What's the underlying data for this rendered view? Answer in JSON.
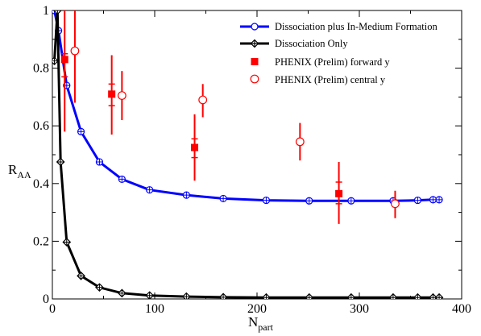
{
  "chart_data": {
    "type": "scatter",
    "xlabel": "N",
    "xlabel_sub": "part",
    "ylabel": "R",
    "ylabel_sub": "AA",
    "xlim": [
      0,
      400
    ],
    "ylim": [
      0,
      1
    ],
    "xticks": [
      0,
      100,
      200,
      300,
      400
    ],
    "xtick_labels": [
      "0",
      "100",
      "200",
      "300",
      "400"
    ],
    "yticks": [
      0,
      0.2,
      0.4,
      0.6,
      0.8,
      1.0
    ],
    "ytick_labels": [
      "0",
      "0.2",
      "0.4",
      "0.6",
      "0.8",
      "1"
    ],
    "legend_position": "top-right",
    "series": [
      {
        "name": "Dissociation plus In-Medium Formation",
        "kind": "line-marker",
        "color": "#0000ff",
        "marker": "circle-plus",
        "x": [
          2,
          6,
          14,
          28,
          46,
          68,
          95,
          131,
          167,
          209,
          251,
          292,
          333,
          357,
          372,
          378
        ],
        "y": [
          1.0,
          0.93,
          0.74,
          0.58,
          0.475,
          0.415,
          0.378,
          0.36,
          0.348,
          0.342,
          0.34,
          0.34,
          0.34,
          0.342,
          0.344,
          0.344
        ]
      },
      {
        "name": "Dissociation Only",
        "kind": "line-marker",
        "color": "#000000",
        "marker": "diamond-plus",
        "x": [
          2,
          5,
          8,
          14,
          28,
          46,
          68,
          95,
          131,
          167,
          209,
          251,
          292,
          333,
          357,
          372,
          378
        ],
        "y": [
          0.825,
          1.0,
          0.475,
          0.197,
          0.08,
          0.04,
          0.02,
          0.012,
          0.008,
          0.006,
          0.005,
          0.005,
          0.005,
          0.005,
          0.005,
          0.005,
          0.005
        ]
      },
      {
        "name": "PHENIX (Prelim) forward y",
        "kind": "marker",
        "color": "#ff0000",
        "marker": "filled-square",
        "points": [
          {
            "x": 12,
            "y": 0.83,
            "err_lo": 0.58,
            "err_hi": 1.0,
            "cap_hi": 0.85,
            "cap_lo": 0.77
          },
          {
            "x": 58,
            "y": 0.71,
            "err_lo": 0.57,
            "err_hi": 0.845,
            "cap_hi": 0.745,
            "cap_lo": 0.67
          },
          {
            "x": 139,
            "y": 0.525,
            "err_lo": 0.41,
            "err_hi": 0.64,
            "cap_hi": 0.555,
            "cap_lo": 0.49
          },
          {
            "x": 280,
            "y": 0.365,
            "err_lo": 0.26,
            "err_hi": 0.475,
            "cap_hi": 0.405,
            "cap_lo": 0.33
          }
        ]
      },
      {
        "name": "PHENIX (Prelim) central y",
        "kind": "marker",
        "color": "#ff0000",
        "marker": "open-circle",
        "points": [
          {
            "x": 22,
            "y": 0.86,
            "err_lo": 0.68,
            "err_hi": 1.0
          },
          {
            "x": 68,
            "y": 0.705,
            "err_lo": 0.62,
            "err_hi": 0.79
          },
          {
            "x": 147,
            "y": 0.69,
            "err_lo": 0.63,
            "err_hi": 0.745
          },
          {
            "x": 242,
            "y": 0.545,
            "err_lo": 0.48,
            "err_hi": 0.61
          },
          {
            "x": 335,
            "y": 0.33,
            "err_lo": 0.28,
            "err_hi": 0.375
          }
        ]
      }
    ]
  }
}
